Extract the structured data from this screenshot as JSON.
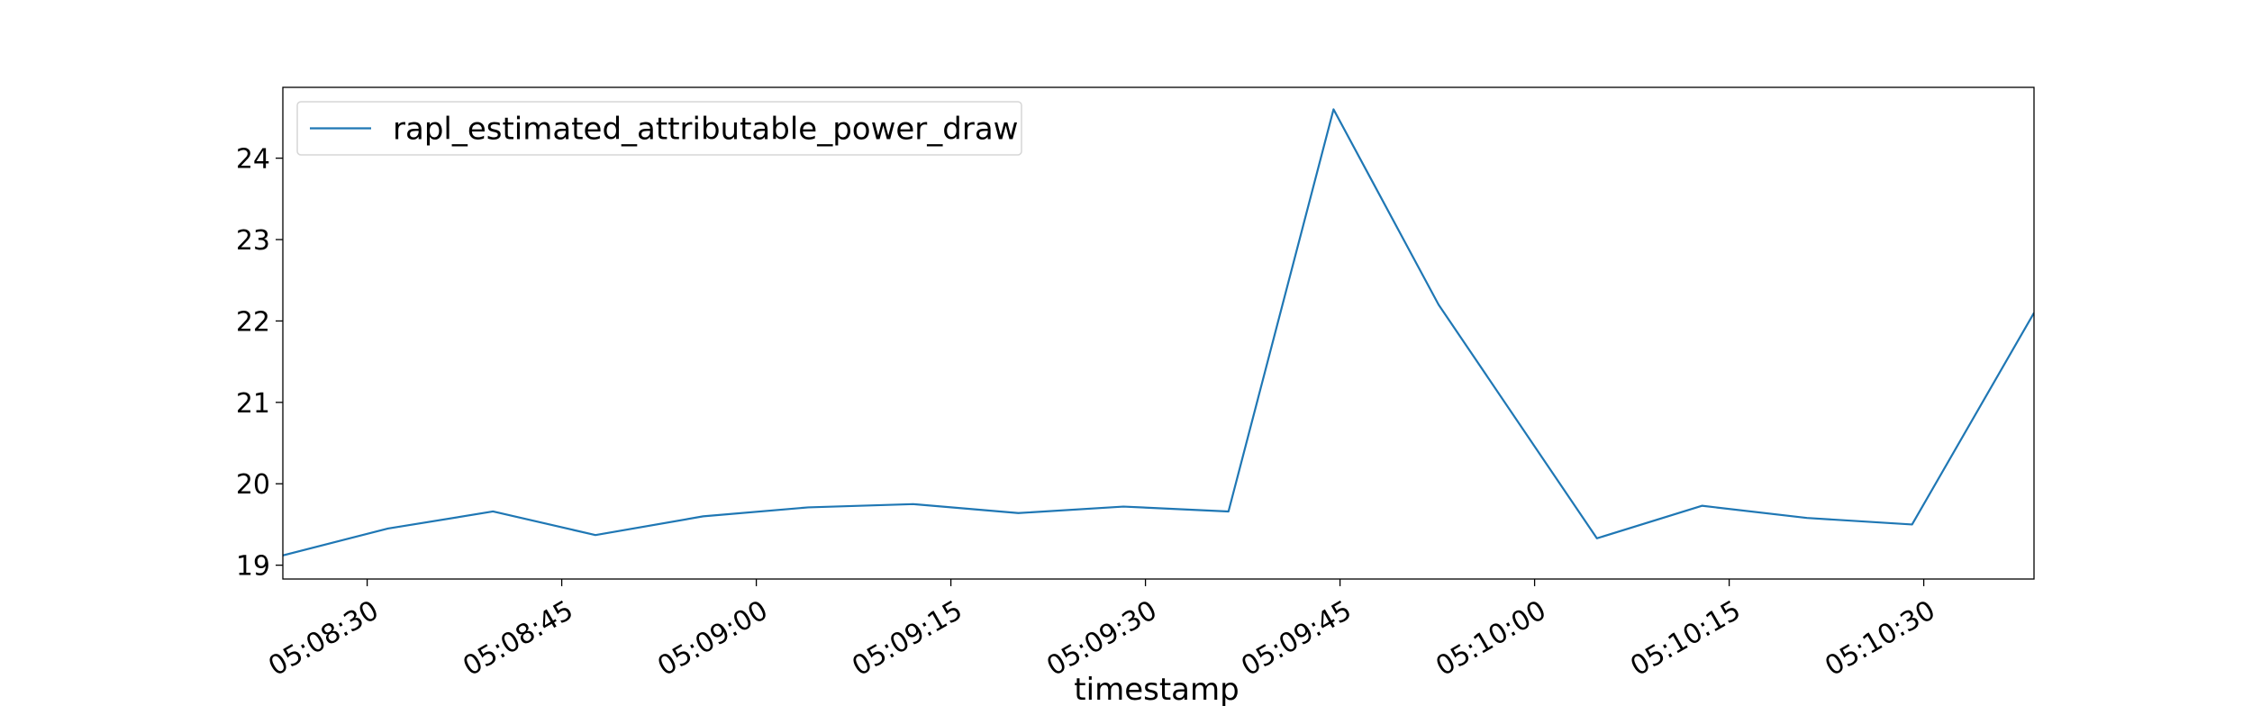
{
  "chart_data": {
    "type": "line",
    "title": "",
    "xlabel": "timestamp",
    "ylabel": "",
    "grid": false,
    "legend_position": "top-left",
    "x_ticks": [
      "05:08:30",
      "05:08:45",
      "05:09:00",
      "05:09:15",
      "05:09:30",
      "05:09:45",
      "05:10:00",
      "05:10:15",
      "05:10:30"
    ],
    "y_ticks": [
      19,
      20,
      21,
      22,
      23,
      24
    ],
    "xlim": [
      "05:08:23.5",
      "05:10:38.5"
    ],
    "ylim": [
      18.83,
      24.87
    ],
    "series": [
      {
        "name": "rapl_estimated_attributable_power_draw",
        "color": "#1f77b4",
        "x": [
          "05:08:23.5",
          "05:08:31.6",
          "05:08:39.7",
          "05:08:47.6",
          "05:08:55.9",
          "05:09:04.0",
          "05:09:12.1",
          "05:09:20.2",
          "05:09:28.3",
          "05:09:36.4",
          "05:09:44.5",
          "05:09:52.6",
          "05:10:04.8",
          "05:10:12.9",
          "05:10:21.0",
          "05:10:29.1",
          "05:10:38.5"
        ],
        "y": [
          19.12,
          19.45,
          19.66,
          19.37,
          19.6,
          19.71,
          19.75,
          19.64,
          19.72,
          19.66,
          24.6,
          22.2,
          19.33,
          19.73,
          19.58,
          19.5,
          22.1
        ]
      }
    ]
  }
}
